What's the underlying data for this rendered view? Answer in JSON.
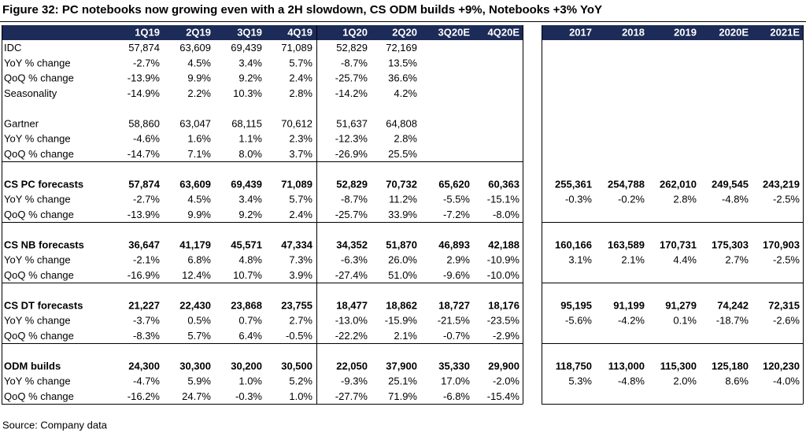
{
  "title": "Figure 32: PC notebooks now growing even with a 2H slowdown, CS ODM builds +9%, Notebooks +3% YoY",
  "table": {
    "quarter_headers": [
      "1Q19",
      "2Q19",
      "3Q19",
      "4Q19",
      "1Q20",
      "2Q20",
      "3Q20E",
      "4Q20E"
    ],
    "year_headers": [
      "2017",
      "2018",
      "2019",
      "2020E",
      "2021E"
    ],
    "groups": [
      {
        "rows": [
          {
            "label": "IDC",
            "q": [
              "57,874",
              "63,609",
              "69,439",
              "71,089",
              "52,829",
              "72,169"
            ]
          },
          {
            "label": "YoY % change",
            "q": [
              "-2.7%",
              "4.5%",
              "3.4%",
              "5.7%",
              "-8.7%",
              "13.5%"
            ]
          },
          {
            "label": "QoQ % change",
            "q": [
              "-13.9%",
              "9.9%",
              "9.2%",
              "2.4%",
              "-25.7%",
              "36.6%"
            ]
          },
          {
            "label": "Seasonality",
            "q": [
              "-14.9%",
              "2.2%",
              "10.3%",
              "2.8%",
              "-14.2%",
              "4.2%"
            ]
          }
        ]
      },
      {
        "rows": [
          {
            "label": "Gartner",
            "q": [
              "58,860",
              "63,047",
              "68,115",
              "70,612",
              "51,637",
              "64,808"
            ]
          },
          {
            "label": "YoY % change",
            "q": [
              "-4.6%",
              "1.6%",
              "1.1%",
              "2.3%",
              "-12.3%",
              "2.8%"
            ]
          },
          {
            "label": "QoQ % change",
            "q": [
              "-14.7%",
              "7.1%",
              "8.0%",
              "3.7%",
              "-26.9%",
              "25.5%"
            ]
          }
        ]
      },
      {
        "rows": [
          {
            "label": "CS PC forecasts",
            "q": [
              "57,874",
              "63,609",
              "69,439",
              "71,089",
              "52,829",
              "70,732",
              "65,620",
              "60,363"
            ],
            "a": [
              "255,361",
              "254,788",
              "262,010",
              "249,545",
              "243,219"
            ]
          },
          {
            "label": "YoY % change",
            "q": [
              "-2.7%",
              "4.5%",
              "3.4%",
              "5.7%",
              "-8.7%",
              "11.2%",
              "-5.5%",
              "-15.1%"
            ],
            "a": [
              "-0.3%",
              "-0.2%",
              "2.8%",
              "-4.8%",
              "-2.5%"
            ]
          },
          {
            "label": "QoQ % change",
            "q": [
              "-13.9%",
              "9.9%",
              "9.2%",
              "2.4%",
              "-25.7%",
              "33.9%",
              "-7.2%",
              "-8.0%"
            ]
          }
        ]
      },
      {
        "rows": [
          {
            "label": "CS NB forecasts",
            "q": [
              "36,647",
              "41,179",
              "45,571",
              "47,334",
              "34,352",
              "51,870",
              "46,893",
              "42,188"
            ],
            "a": [
              "160,166",
              "163,589",
              "170,731",
              "175,303",
              "170,903"
            ]
          },
          {
            "label": "YoY % change",
            "q": [
              "-2.1%",
              "6.8%",
              "4.8%",
              "7.3%",
              "-6.3%",
              "26.0%",
              "2.9%",
              "-10.9%"
            ],
            "a": [
              "3.1%",
              "2.1%",
              "4.4%",
              "2.7%",
              "-2.5%"
            ]
          },
          {
            "label": "QoQ % change",
            "q": [
              "-16.9%",
              "12.4%",
              "10.7%",
              "3.9%",
              "-27.4%",
              "51.0%",
              "-9.6%",
              "-10.0%"
            ]
          }
        ]
      },
      {
        "rows": [
          {
            "label": "CS DT forecasts",
            "q": [
              "21,227",
              "22,430",
              "23,868",
              "23,755",
              "18,477",
              "18,862",
              "18,727",
              "18,176"
            ],
            "a": [
              "95,195",
              "91,199",
              "91,279",
              "74,242",
              "72,315"
            ]
          },
          {
            "label": "YoY % change",
            "q": [
              "-3.7%",
              "0.5%",
              "0.7%",
              "2.7%",
              "-13.0%",
              "-15.9%",
              "-21.5%",
              "-23.5%"
            ],
            "a": [
              "-5.6%",
              "-4.2%",
              "0.1%",
              "-18.7%",
              "-2.6%"
            ]
          },
          {
            "label": "QoQ % change",
            "q": [
              "-8.3%",
              "5.7%",
              "6.4%",
              "-0.5%",
              "-22.2%",
              "2.1%",
              "-0.7%",
              "-2.9%"
            ]
          }
        ]
      },
      {
        "rows": [
          {
            "label": "ODM builds",
            "q": [
              "24,300",
              "30,300",
              "30,200",
              "30,500",
              "22,050",
              "37,900",
              "35,330",
              "29,900"
            ],
            "a": [
              "118,750",
              "113,000",
              "115,300",
              "125,180",
              "120,230"
            ]
          },
          {
            "label": "YoY % change",
            "q": [
              "-4.7%",
              "5.9%",
              "1.0%",
              "5.2%",
              "-9.3%",
              "25.1%",
              "17.0%",
              "-2.0%"
            ],
            "a": [
              "5.3%",
              "-4.8%",
              "2.0%",
              "8.6%",
              "-4.0%"
            ]
          },
          {
            "label": "QoQ % change",
            "q": [
              "-16.2%",
              "24.7%",
              "-0.3%",
              "1.0%",
              "-27.7%",
              "71.9%",
              "-6.8%",
              "-15.4%"
            ]
          }
        ]
      }
    ]
  },
  "source": "Source: Company data"
}
